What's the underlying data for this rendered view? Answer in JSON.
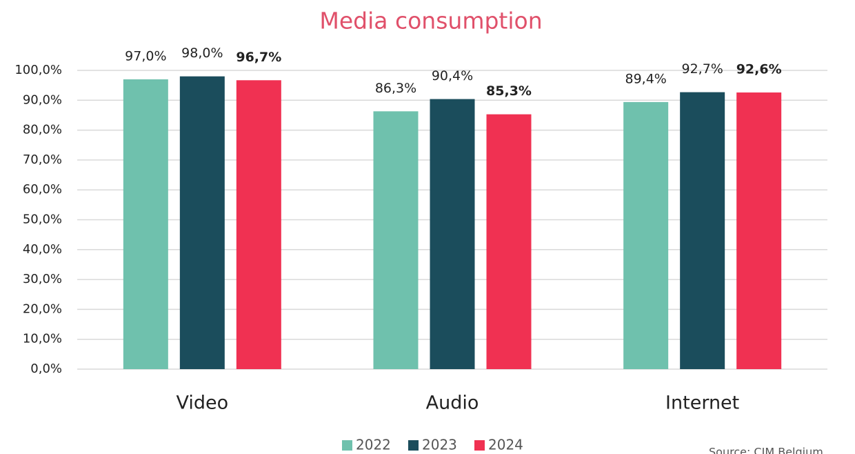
{
  "chart_data": {
    "type": "bar",
    "title": "Media consumption",
    "categories": [
      "Video",
      "Audio",
      "Internet"
    ],
    "series": [
      {
        "name": "2022",
        "color": "#6fc1ad",
        "values": [
          97.0,
          86.3,
          89.4
        ],
        "value_labels": [
          "97,0%",
          "86,3%",
          "89,4%"
        ]
      },
      {
        "name": "2023",
        "color": "#1b4d5c",
        "values": [
          98.0,
          90.4,
          92.7
        ],
        "value_labels": [
          "98,0%",
          "90,4%",
          "92,7%"
        ]
      },
      {
        "name": "2024",
        "color": "#f03152",
        "values": [
          96.7,
          85.3,
          92.6
        ],
        "value_labels": [
          "96,7%",
          "85,3%",
          "92,6%"
        ]
      }
    ],
    "ylim": [
      0,
      100
    ],
    "yticks": [
      {
        "value": 0,
        "label": "0,0%"
      },
      {
        "value": 10,
        "label": "10,0%"
      },
      {
        "value": 20,
        "label": "20,0%"
      },
      {
        "value": 30,
        "label": "30,0%"
      },
      {
        "value": 40,
        "label": "40,0%"
      },
      {
        "value": 50,
        "label": "50,0%"
      },
      {
        "value": 60,
        "label": "60,0%"
      },
      {
        "value": 70,
        "label": "70,0%"
      },
      {
        "value": 80,
        "label": "80,0%"
      },
      {
        "value": 90,
        "label": "90,0%"
      },
      {
        "value": 100,
        "label": "100,0%"
      }
    ],
    "grid": true,
    "legend": "bottom",
    "source": "Source: CIM Belgium"
  }
}
